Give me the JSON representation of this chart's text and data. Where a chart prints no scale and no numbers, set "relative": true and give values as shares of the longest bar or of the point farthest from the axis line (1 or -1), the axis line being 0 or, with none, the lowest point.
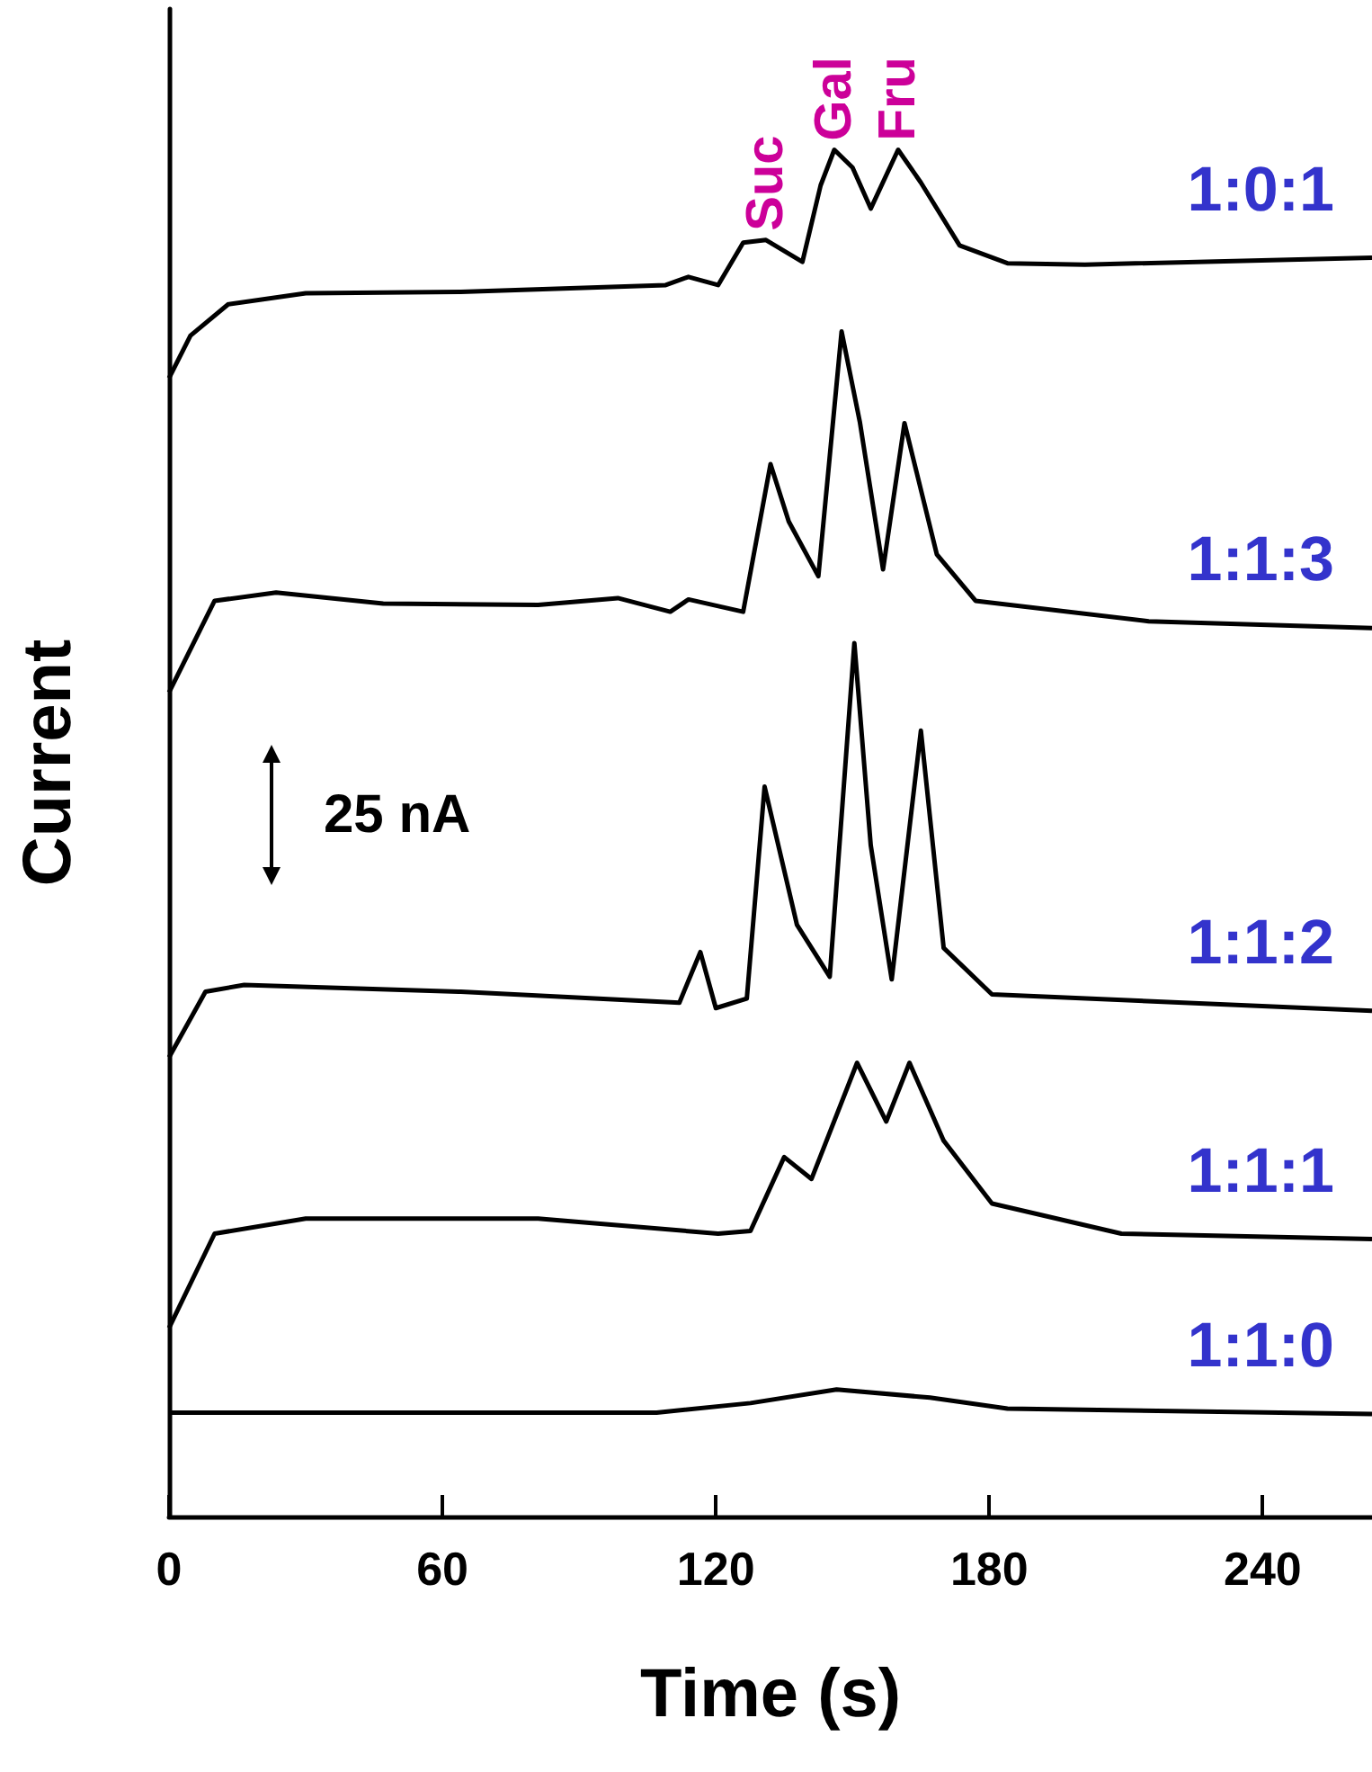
{
  "chart_data": {
    "type": "line",
    "relative": true,
    "xlabel": "Time (s)",
    "ylabel": "Current",
    "xlim": [
      0,
      264
    ],
    "xticks": [
      0,
      60,
      120,
      180,
      240
    ],
    "grid": false,
    "legend": false,
    "marker": "none",
    "line_style": "solid",
    "annotations": [
      {
        "text": "Suc",
        "x": 131,
        "y": 0.934
      },
      {
        "text": "Gal",
        "x": 146,
        "y": 1.0
      },
      {
        "text": "Fru",
        "x": 160,
        "y": 1.0
      },
      "25 nA"
    ],
    "series": [
      {
        "name": "1:0:1",
        "color": "#000000",
        "x": [
          0,
          4.7,
          13,
          30,
          64,
          109,
          114,
          120.5,
          126,
          131,
          139,
          143,
          146,
          150,
          154,
          160,
          165,
          173.5,
          184,
          201,
          264
        ],
        "values": [
          0.833,
          0.864,
          0.887,
          0.895,
          0.896,
          0.901,
          0.907,
          0.901,
          0.932,
          0.934,
          0.918,
          0.974,
          1.0,
          0.987,
          0.957,
          1.0,
          0.976,
          0.93,
          0.917,
          0.916,
          0.921
        ]
      },
      {
        "name": "1:1:3",
        "color": "#000000",
        "x": [
          0,
          10,
          23.5,
          47,
          81,
          98.5,
          110,
          114,
          126,
          132,
          136,
          142.5,
          147.6,
          151.6,
          156.7,
          161.4,
          168.5,
          177,
          215,
          264
        ],
        "values": [
          0.603,
          0.67,
          0.676,
          0.668,
          0.667,
          0.672,
          0.662,
          0.671,
          0.662,
          0.77,
          0.728,
          0.688,
          0.867,
          0.801,
          0.693,
          0.8,
          0.704,
          0.67,
          0.655,
          0.65
        ]
      },
      {
        "name": "1:1:2",
        "color": "#000000",
        "x": [
          0,
          8,
          16.5,
          64,
          112,
          116.6,
          120,
          126.8,
          130.7,
          137.8,
          145,
          150.4,
          154,
          158.6,
          165,
          170,
          180.6,
          264
        ],
        "values": [
          0.336,
          0.384,
          0.389,
          0.384,
          0.376,
          0.413,
          0.372,
          0.379,
          0.534,
          0.433,
          0.395,
          0.639,
          0.491,
          0.393,
          0.575,
          0.416,
          0.382,
          0.37
        ]
      },
      {
        "name": "1:1:1",
        "color": "#000000",
        "x": [
          0,
          10,
          30,
          81,
          120.5,
          127.6,
          135,
          141,
          151,
          157.4,
          162.5,
          170,
          180.6,
          209,
          264
        ],
        "values": [
          0.138,
          0.207,
          0.218,
          0.218,
          0.207,
          0.209,
          0.263,
          0.247,
          0.332,
          0.289,
          0.332,
          0.275,
          0.229,
          0.207,
          0.203
        ]
      },
      {
        "name": "1:1:0",
        "color": "#000000",
        "x": [
          0,
          64,
          107,
          127.6,
          146.5,
          167,
          184,
          264
        ],
        "values": [
          0.076,
          0.076,
          0.076,
          0.083,
          0.093,
          0.087,
          0.079,
          0.075
        ]
      }
    ]
  }
}
